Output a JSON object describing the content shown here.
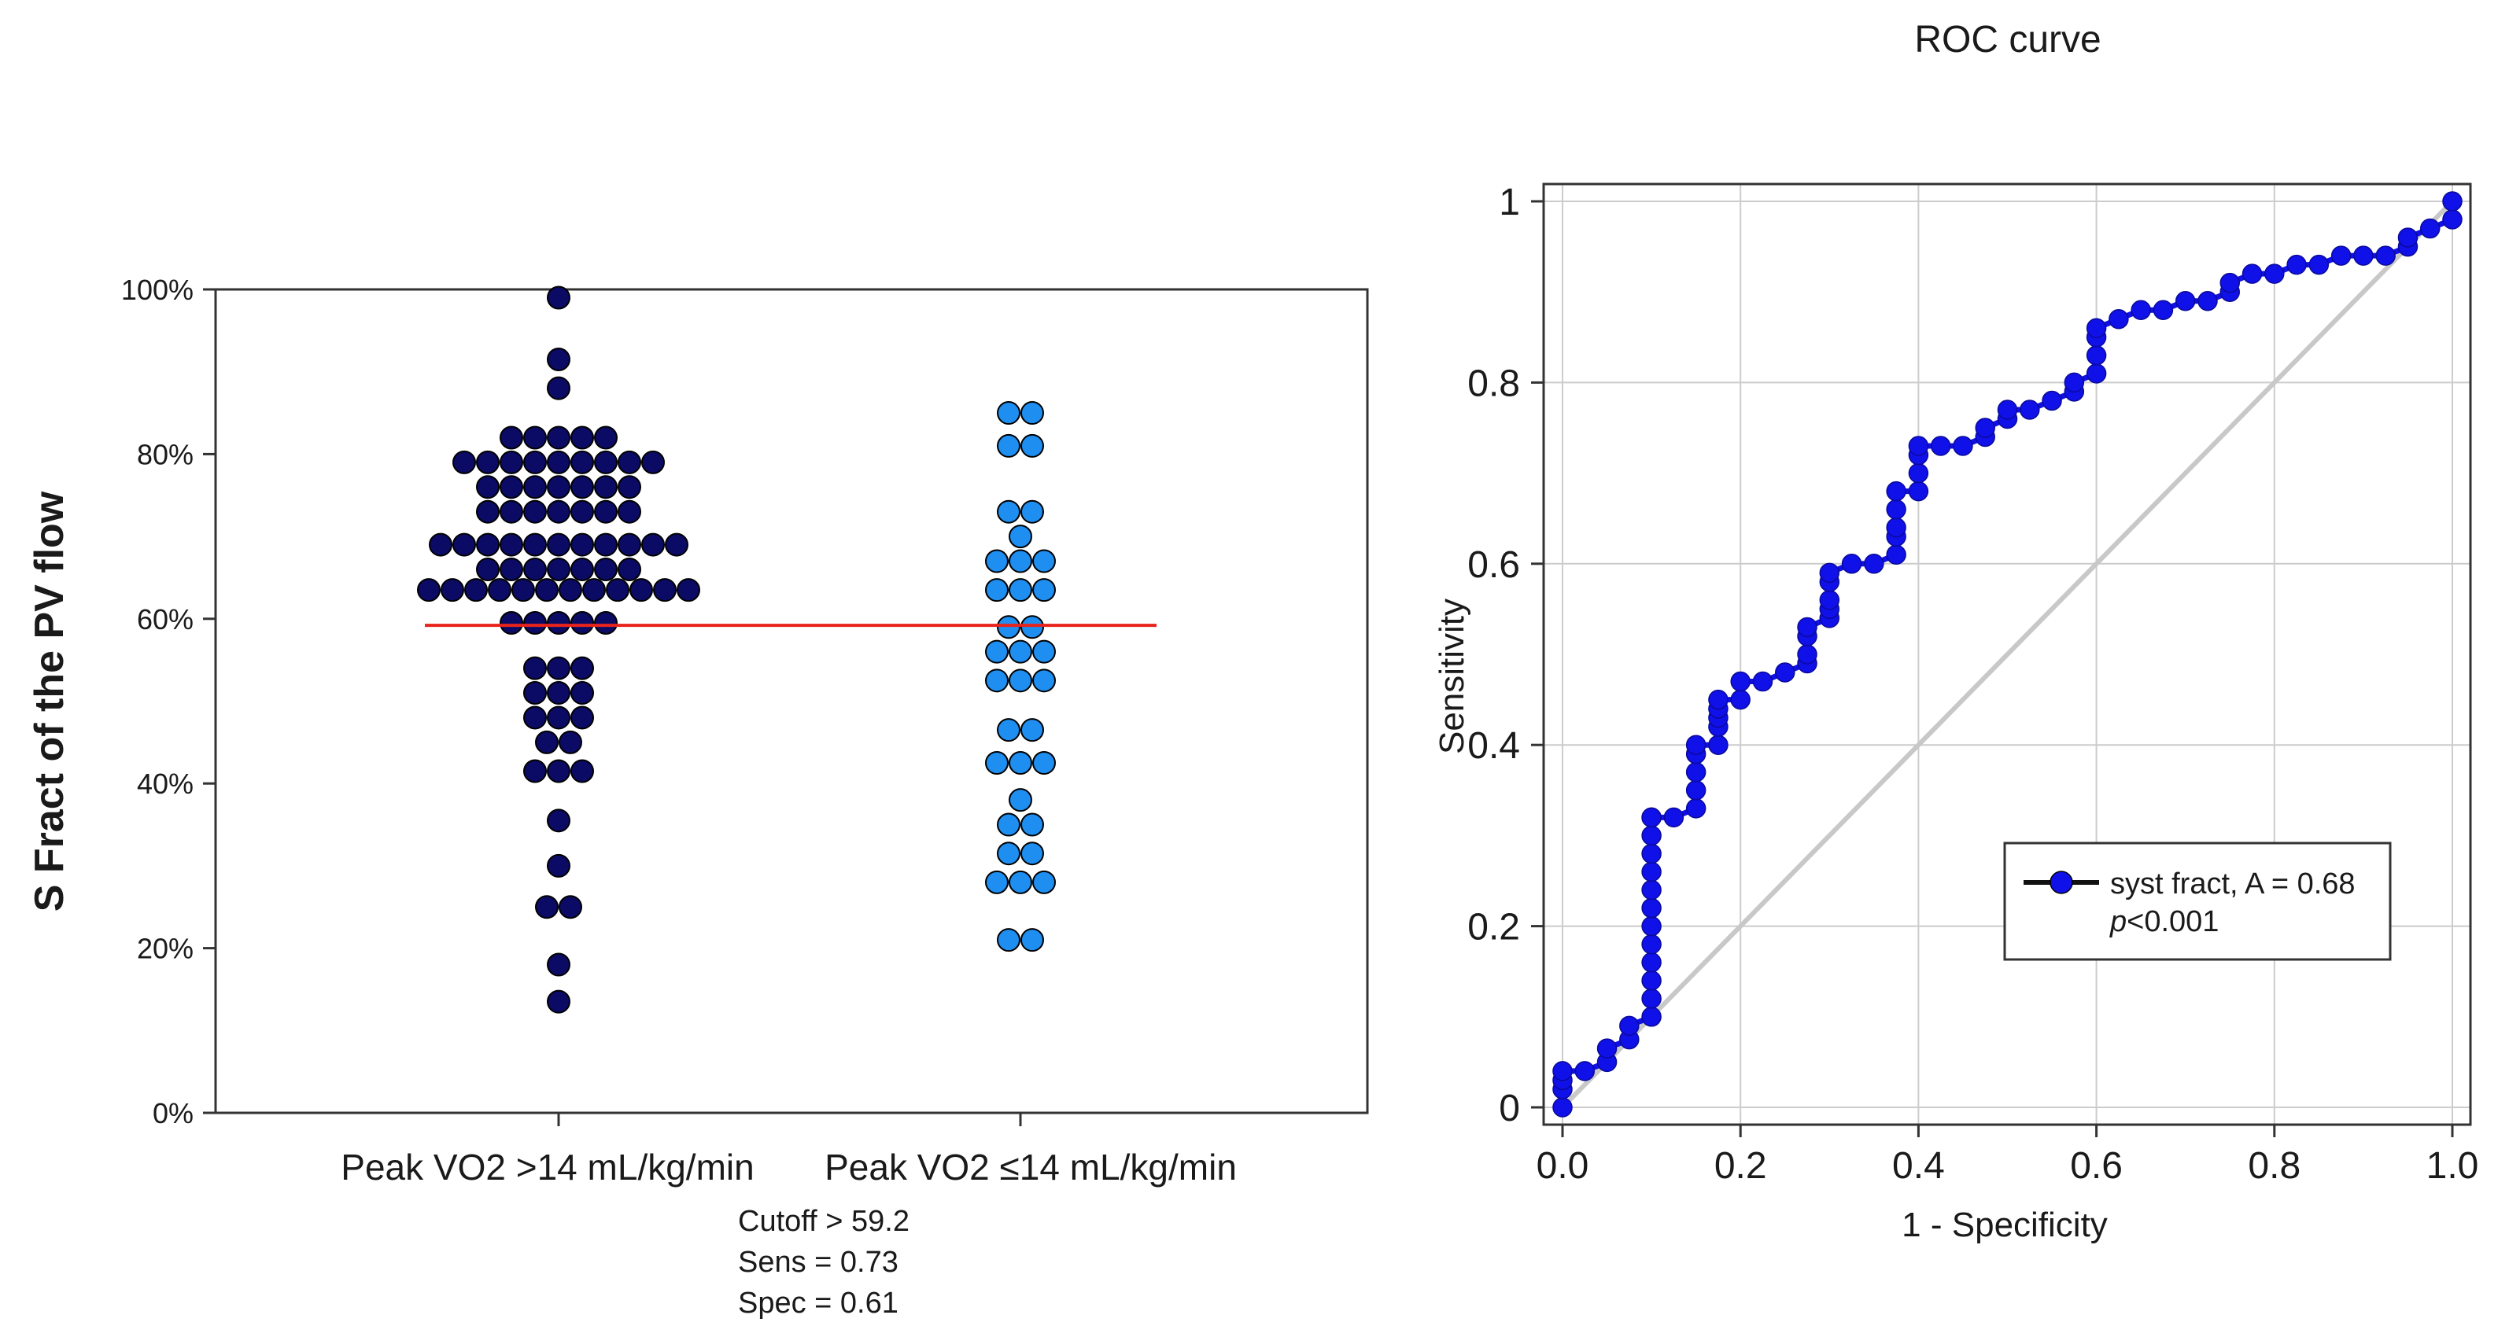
{
  "colors": {
    "group1_fill": "#0b0b66",
    "group2_fill": "#1e8ef0",
    "cutoff_line": "#e8231c",
    "roc_line": "#1010e8",
    "diagonal": "#c8c8c8",
    "grid": "#cccccc"
  },
  "chart_data": [
    {
      "type": "scatter",
      "subtype": "dot-plot",
      "ylabel": "S Fract of the PV flow",
      "ylim": [
        0,
        100
      ],
      "yticks": [
        "0%",
        "20%",
        "40%",
        "60%",
        "80%",
        "100%"
      ],
      "ytick_values": [
        0,
        20,
        40,
        60,
        80,
        100
      ],
      "categories": [
        "Peak VO2 >14 mL/kg/min",
        "Peak VO2 ≤14 mL/kg/min"
      ],
      "cutoff_line": 59.2,
      "annotations": [
        "Cutoff > 59.2",
        "Sens = 0.73",
        "Spec = 0.61"
      ],
      "groups": [
        {
          "name": "Peak VO2 >14 mL/kg/min",
          "values": [
            99,
            91.5,
            88,
            82,
            82,
            82,
            82,
            82,
            79,
            79,
            79,
            79,
            79,
            79,
            79,
            79,
            79,
            76,
            76,
            76,
            76,
            76,
            76,
            76,
            73,
            73,
            73,
            73,
            73,
            73,
            73,
            69,
            69,
            69,
            69,
            69,
            69,
            69,
            69,
            69,
            69,
            69,
            66,
            66,
            66,
            66,
            66,
            66,
            66,
            63.5,
            63.5,
            63.5,
            63.5,
            63.5,
            63.5,
            63.5,
            63.5,
            63.5,
            63.5,
            63.5,
            63.5,
            59.5,
            59.5,
            59.5,
            59.5,
            59.5,
            54,
            54,
            54,
            51,
            51,
            51,
            48,
            48,
            48,
            45,
            45,
            41.5,
            41.5,
            41.5,
            35.5,
            30,
            25,
            25,
            18,
            13.5
          ]
        },
        {
          "name": "Peak VO2 ≤14 mL/kg/min",
          "values": [
            85,
            85,
            81,
            81,
            73,
            73,
            70,
            67,
            67,
            67,
            63.5,
            63.5,
            63.5,
            59,
            59,
            56,
            56,
            56,
            52.5,
            52.5,
            52.5,
            46.5,
            46.5,
            42.5,
            42.5,
            42.5,
            38,
            35,
            35,
            31.5,
            31.5,
            28,
            28,
            28,
            21,
            21
          ]
        }
      ]
    },
    {
      "type": "line",
      "title": "ROC curve",
      "xlabel": "1 - Specificity",
      "ylabel": "Sensitivity",
      "xlim": [
        0,
        1
      ],
      "ylim": [
        0,
        1
      ],
      "xticks": [
        "0.0",
        "0.2",
        "0.4",
        "0.6",
        "0.8",
        "1.0"
      ],
      "xtick_values": [
        0,
        0.2,
        0.4,
        0.6,
        0.8,
        1
      ],
      "yticks": [
        "0",
        "0.2",
        "0.4",
        "0.6",
        "0.8",
        "1"
      ],
      "ytick_values": [
        0,
        0.2,
        0.4,
        0.6,
        0.8,
        1
      ],
      "legend": {
        "position": "bottom-right",
        "label": "syst fract, A = 0.68",
        "pvalue_p": "p",
        "pvalue_rest": "<0.001"
      },
      "series": [
        {
          "name": "syst fract, A = 0.68",
          "x": [
            0,
            0,
            0,
            0,
            0.025,
            0.05,
            0.05,
            0.075,
            0.075,
            0.1,
            0.1,
            0.1,
            0.1,
            0.1,
            0.1,
            0.1,
            0.1,
            0.1,
            0.1,
            0.1,
            0.1,
            0.1,
            0.125,
            0.15,
            0.15,
            0.15,
            0.15,
            0.15,
            0.175,
            0.175,
            0.175,
            0.175,
            0.175,
            0.2,
            0.2,
            0.225,
            0.25,
            0.275,
            0.275,
            0.275,
            0.275,
            0.3,
            0.3,
            0.3,
            0.3,
            0.3,
            0.325,
            0.35,
            0.375,
            0.375,
            0.375,
            0.375,
            0.375,
            0.4,
            0.4,
            0.4,
            0.4,
            0.425,
            0.45,
            0.475,
            0.475,
            0.5,
            0.5,
            0.525,
            0.55,
            0.575,
            0.575,
            0.6,
            0.6,
            0.6,
            0.6,
            0.625,
            0.65,
            0.675,
            0.7,
            0.725,
            0.75,
            0.75,
            0.775,
            0.8,
            0.825,
            0.85,
            0.875,
            0.9,
            0.925,
            0.95,
            0.95,
            0.975,
            1.0,
            1.0
          ],
          "y": [
            0,
            0.02,
            0.03,
            0.04,
            0.04,
            0.05,
            0.065,
            0.075,
            0.09,
            0.1,
            0.12,
            0.14,
            0.16,
            0.18,
            0.2,
            0.22,
            0.24,
            0.26,
            0.28,
            0.3,
            0.32,
            0.32,
            0.32,
            0.33,
            0.35,
            0.37,
            0.39,
            0.4,
            0.4,
            0.42,
            0.43,
            0.44,
            0.45,
            0.45,
            0.47,
            0.47,
            0.48,
            0.49,
            0.5,
            0.52,
            0.53,
            0.54,
            0.55,
            0.56,
            0.58,
            0.59,
            0.6,
            0.6,
            0.61,
            0.63,
            0.64,
            0.66,
            0.68,
            0.68,
            0.7,
            0.72,
            0.73,
            0.73,
            0.73,
            0.74,
            0.75,
            0.76,
            0.77,
            0.77,
            0.78,
            0.79,
            0.8,
            0.81,
            0.83,
            0.85,
            0.86,
            0.87,
            0.88,
            0.88,
            0.89,
            0.89,
            0.9,
            0.91,
            0.92,
            0.92,
            0.93,
            0.93,
            0.94,
            0.94,
            0.94,
            0.95,
            0.96,
            0.97,
            0.98,
            1.0
          ]
        }
      ],
      "reference_line": {
        "x": [
          0,
          1
        ],
        "y": [
          0,
          1
        ]
      }
    }
  ]
}
